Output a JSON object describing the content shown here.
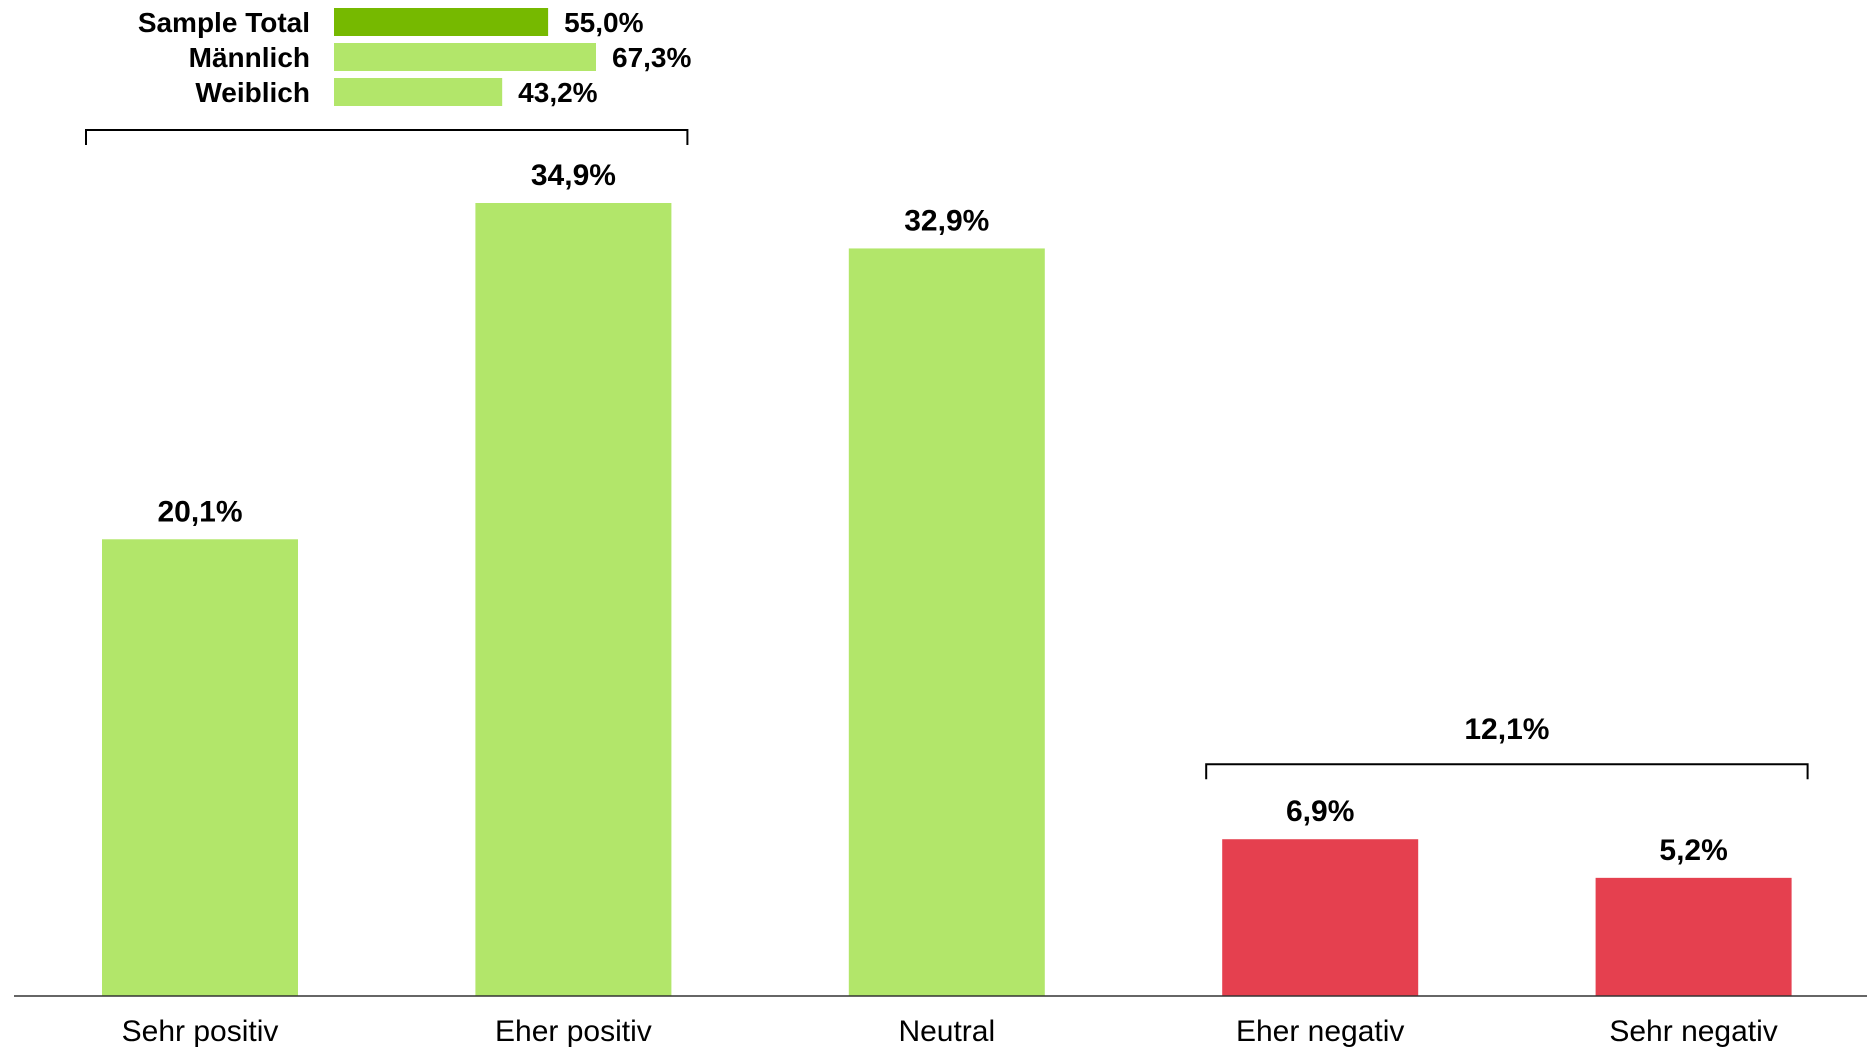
{
  "chart_data": {
    "type": "bar",
    "categories": [
      "Sehr positiv",
      "Eher positiv",
      "Neutral",
      "Eher negativ",
      "Sehr negativ"
    ],
    "values": [
      20.1,
      34.9,
      32.9,
      6.9,
      5.2
    ],
    "value_labels": [
      "20,1%",
      "34,9%",
      "32,9%",
      "6,9%",
      "5,2%"
    ],
    "bar_colors": [
      "#b2e66a",
      "#b2e66a",
      "#b2e66a",
      "#e5404f",
      "#e5404f"
    ],
    "ylim": [
      0,
      34.9
    ],
    "grid": false,
    "groups": [
      {
        "covers": [
          0,
          1
        ],
        "position": "legend",
        "label": ""
      },
      {
        "covers": [
          3,
          4
        ],
        "position": "above",
        "label": "12,1%",
        "value": 12.1
      }
    ],
    "legend": {
      "placement": "top-left",
      "items": [
        {
          "name": "Sample Total",
          "value": 55.0,
          "label": "55,0%",
          "color": "#76b900"
        },
        {
          "name": "Männlich",
          "value": 67.3,
          "label": "67,3%",
          "color": "#b2e66a"
        },
        {
          "name": "Weiblich",
          "value": 43.2,
          "label": "43,2%",
          "color": "#b2e66a"
        }
      ]
    }
  }
}
